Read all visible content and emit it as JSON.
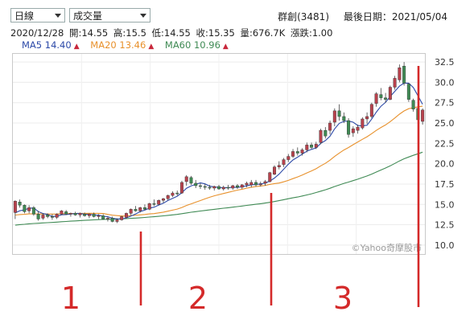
{
  "selectors": {
    "period": "日線",
    "indicator": "成交量"
  },
  "stock": {
    "name": "群創(3481)",
    "last_date_label": "最後日期：2021/05/04"
  },
  "quote": {
    "date": "2020/12/28",
    "open": "開:14.55",
    "high": "高:15.5",
    "low": "低:14.55",
    "close": "收:15.35",
    "volume": "量:676.7K",
    "change": "漲跌:1.00"
  },
  "ma": [
    {
      "label": "MA5",
      "value": "14.40",
      "color": "#2d4aa8",
      "trend": "▲"
    },
    {
      "label": "MA20",
      "value": "13.46",
      "color": "#e8912c",
      "trend": "▲"
    },
    {
      "label": "MA60",
      "value": "10.96",
      "color": "#3f8a54",
      "trend": "▲"
    }
  ],
  "watermark": "©Yahoo奇摩股市",
  "annotations": {
    "phase_labels": [
      "1",
      "2",
      "3"
    ],
    "color": "#d42a2a"
  },
  "chart_data": {
    "type": "candlestick",
    "ylim": [
      8.9,
      33.5
    ],
    "yticks": [
      10.0,
      12.5,
      15.0,
      17.5,
      20.0,
      22.5,
      25.0,
      27.5,
      30.0,
      32.5
    ],
    "grid": true,
    "colors": {
      "up": "#b8424d",
      "down": "#3f8a54",
      "ma5": "#2d4aa8",
      "ma20": "#e8912c",
      "ma60": "#3f8a54"
    },
    "candles": [
      [
        14.0,
        15.5,
        13.2,
        15.4
      ],
      [
        15.3,
        15.6,
        14.6,
        14.9
      ],
      [
        14.9,
        15.0,
        13.9,
        14.1
      ],
      [
        14.2,
        14.9,
        13.9,
        14.6
      ],
      [
        14.6,
        14.8,
        13.6,
        13.8
      ],
      [
        13.8,
        14.2,
        13.0,
        13.2
      ],
      [
        13.3,
        13.9,
        13.1,
        13.7
      ],
      [
        13.7,
        13.9,
        13.3,
        13.5
      ],
      [
        13.5,
        13.8,
        13.1,
        13.4
      ],
      [
        13.4,
        13.9,
        13.2,
        13.8
      ],
      [
        13.8,
        14.3,
        13.7,
        14.2
      ],
      [
        14.1,
        14.3,
        13.7,
        13.8
      ],
      [
        13.8,
        14.0,
        13.5,
        13.9
      ],
      [
        13.9,
        14.1,
        13.6,
        13.7
      ],
      [
        13.7,
        14.0,
        13.4,
        13.9
      ],
      [
        13.8,
        14.0,
        13.5,
        13.6
      ],
      [
        13.6,
        13.9,
        13.3,
        13.8
      ],
      [
        13.8,
        14.0,
        13.4,
        13.5
      ],
      [
        13.5,
        13.8,
        13.2,
        13.6
      ],
      [
        13.6,
        13.8,
        13.1,
        13.2
      ],
      [
        13.2,
        13.5,
        12.9,
        13.3
      ],
      [
        13.3,
        13.5,
        12.8,
        12.9
      ],
      [
        12.9,
        13.3,
        12.7,
        13.1
      ],
      [
        13.1,
        13.6,
        13.0,
        13.5
      ],
      [
        13.4,
        14.0,
        13.3,
        13.9
      ],
      [
        13.9,
        14.5,
        13.7,
        14.4
      ],
      [
        14.4,
        14.8,
        14.1,
        14.2
      ],
      [
        14.2,
        14.7,
        14.0,
        14.6
      ],
      [
        14.6,
        15.0,
        14.3,
        14.4
      ],
      [
        14.4,
        15.2,
        14.3,
        15.1
      ],
      [
        15.1,
        15.6,
        14.8,
        15.0
      ],
      [
        15.0,
        15.6,
        14.9,
        15.5
      ],
      [
        15.5,
        15.8,
        15.2,
        15.7
      ],
      [
        15.7,
        16.2,
        15.5,
        16.1
      ],
      [
        16.1,
        16.6,
        15.9,
        16.4
      ],
      [
        16.4,
        16.7,
        16.1,
        16.3
      ],
      [
        16.4,
        17.9,
        16.3,
        17.7
      ],
      [
        17.8,
        18.6,
        17.3,
        18.4
      ],
      [
        18.3,
        18.5,
        17.4,
        17.6
      ],
      [
        17.6,
        18.0,
        17.0,
        17.3
      ],
      [
        17.3,
        17.6,
        16.9,
        17.2
      ],
      [
        17.2,
        17.5,
        16.8,
        17.1
      ],
      [
        17.1,
        17.4,
        16.8,
        17.0
      ],
      [
        17.0,
        17.3,
        16.7,
        17.2
      ],
      [
        17.2,
        17.4,
        16.8,
        16.9
      ],
      [
        16.9,
        17.3,
        16.7,
        17.1
      ],
      [
        17.1,
        17.4,
        16.8,
        17.0
      ],
      [
        17.0,
        17.4,
        16.8,
        17.3
      ],
      [
        17.3,
        17.5,
        16.9,
        17.1
      ],
      [
        17.1,
        17.5,
        16.9,
        17.4
      ],
      [
        17.4,
        17.8,
        17.1,
        17.6
      ],
      [
        17.4,
        18.0,
        17.1,
        17.7
      ],
      [
        17.7,
        18.0,
        17.2,
        17.4
      ],
      [
        17.4,
        17.8,
        17.2,
        17.5
      ],
      [
        17.6,
        18.0,
        17.3,
        17.8
      ],
      [
        17.8,
        19.0,
        17.7,
        18.9
      ],
      [
        18.7,
        19.8,
        18.6,
        19.6
      ],
      [
        19.6,
        20.3,
        19.3,
        19.8
      ],
      [
        19.9,
        20.7,
        19.6,
        20.5
      ],
      [
        20.5,
        21.2,
        20.2,
        20.9
      ],
      [
        20.9,
        21.8,
        20.7,
        21.5
      ],
      [
        21.5,
        22.0,
        21.0,
        21.3
      ],
      [
        21.3,
        21.9,
        21.0,
        21.7
      ],
      [
        21.7,
        22.6,
        21.4,
        22.3
      ],
      [
        22.3,
        22.6,
        21.8,
        22.0
      ],
      [
        22.0,
        22.7,
        21.8,
        22.4
      ],
      [
        22.6,
        24.3,
        22.4,
        24.1
      ],
      [
        24.1,
        24.5,
        23.1,
        23.4
      ],
      [
        24.1,
        25.3,
        23.6,
        25.0
      ],
      [
        25.1,
        26.8,
        24.6,
        26.5
      ],
      [
        26.5,
        27.3,
        25.3,
        25.8
      ],
      [
        25.8,
        26.3,
        25.0,
        25.3
      ],
      [
        25.3,
        25.6,
        23.2,
        23.6
      ],
      [
        23.8,
        24.6,
        23.3,
        24.3
      ],
      [
        24.1,
        24.8,
        23.7,
        24.5
      ],
      [
        24.4,
        25.7,
        24.2,
        25.5
      ],
      [
        25.5,
        26.3,
        24.9,
        25.8
      ],
      [
        25.8,
        27.5,
        25.6,
        27.3
      ],
      [
        27.4,
        28.8,
        27.0,
        28.6
      ],
      [
        28.5,
        29.3,
        27.8,
        28.1
      ],
      [
        28.1,
        28.7,
        27.5,
        27.9
      ],
      [
        27.9,
        29.6,
        27.8,
        29.4
      ],
      [
        29.4,
        30.8,
        29.1,
        30.5
      ],
      [
        30.3,
        32.2,
        30.0,
        31.8
      ],
      [
        32.0,
        32.5,
        29.6,
        29.9
      ],
      [
        29.8,
        29.9,
        27.6,
        27.9
      ],
      [
        27.8,
        28.0,
        26.4,
        26.7
      ],
      [
        26.8,
        27.1,
        24.9,
        25.4
      ],
      [
        25.2,
        26.8,
        24.8,
        26.6
      ]
    ]
  }
}
